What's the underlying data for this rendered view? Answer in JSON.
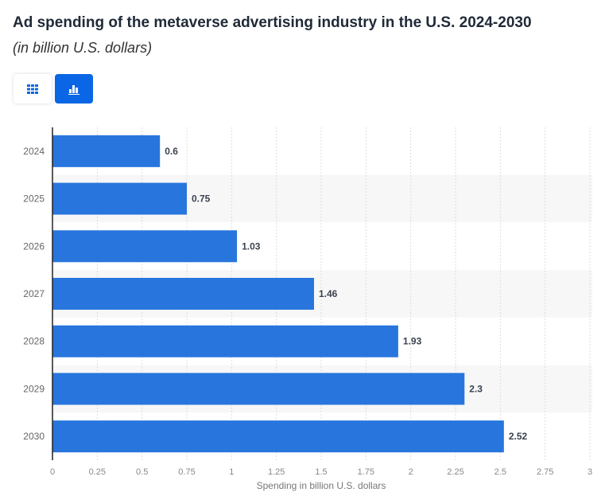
{
  "header": {
    "title": "Ad spending of the metaverse advertising industry in the U.S. 2024-2030",
    "subtitle": "(in billion U.S. dollars)"
  },
  "toolbar": {
    "table_icon": "grid-icon",
    "chart_icon": "bar-chart-icon",
    "active": "chart"
  },
  "colors": {
    "bar": "#2876dd",
    "accent": "#0a66e4",
    "band": "#f7f7f7"
  },
  "chart_data": {
    "type": "bar",
    "orientation": "horizontal",
    "categories": [
      "2024",
      "2025",
      "2026",
      "2027",
      "2028",
      "2029",
      "2030"
    ],
    "values": [
      0.6,
      0.75,
      1.03,
      1.46,
      1.93,
      2.3,
      2.52
    ],
    "value_labels": [
      "0.6",
      "0.75",
      "1.03",
      "1.46",
      "1.93",
      "2.3",
      "2.52"
    ],
    "xlabel": "Spending in billion U.S. dollars",
    "ylabel": "",
    "xlim": [
      0,
      3
    ],
    "xticks": [
      "0",
      "0.25",
      "0.5",
      "0.75",
      "1",
      "1.25",
      "1.5",
      "1.75",
      "2",
      "2.25",
      "2.5",
      "2.75",
      "3"
    ],
    "grid": true
  }
}
